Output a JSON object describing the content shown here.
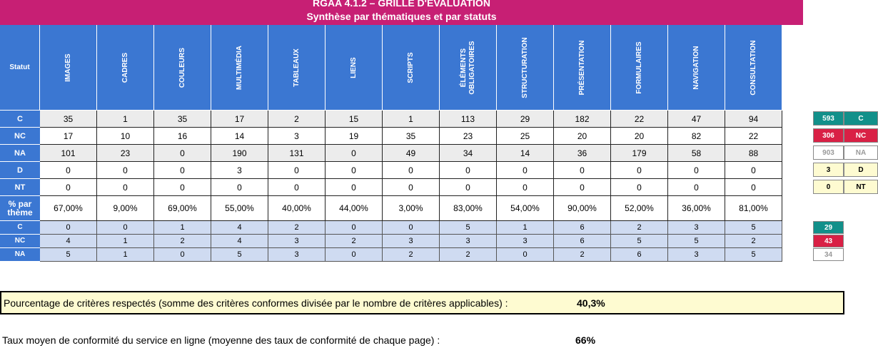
{
  "title": "RGAA 4.1.2 – GRILLE D'ÉVALUATION",
  "subtitle": "Synthèse par thématiques et par statuts",
  "statut_header": "Statut",
  "themes": [
    "IMAGES",
    "CADRES",
    "COULEURS",
    "MULTIMÉDIA",
    "TABLEAUX",
    "LIENS",
    "SCRIPTS",
    "ÉLÉMENTS\nOBLIGATOIRES",
    "STRUCTURATION",
    "PRÉSENTATION",
    "FORMULAIRES",
    "NAVIGATION",
    "CONSULTATION"
  ],
  "rows": [
    {
      "label": "C",
      "values": [
        "35",
        "1",
        "35",
        "17",
        "2",
        "15",
        "1",
        "113",
        "29",
        "182",
        "22",
        "47",
        "94"
      ]
    },
    {
      "label": "NC",
      "values": [
        "17",
        "10",
        "16",
        "14",
        "3",
        "19",
        "35",
        "23",
        "25",
        "20",
        "20",
        "82",
        "22"
      ]
    },
    {
      "label": "NA",
      "values": [
        "101",
        "23",
        "0",
        "190",
        "131",
        "0",
        "49",
        "34",
        "14",
        "36",
        "179",
        "58",
        "88"
      ]
    },
    {
      "label": "D",
      "values": [
        "0",
        "0",
        "0",
        "3",
        "0",
        "0",
        "0",
        "0",
        "0",
        "0",
        "0",
        "0",
        "0"
      ]
    },
    {
      "label": "NT",
      "values": [
        "0",
        "0",
        "0",
        "0",
        "0",
        "0",
        "0",
        "0",
        "0",
        "0",
        "0",
        "0",
        "0"
      ]
    },
    {
      "label": "% par thème",
      "values": [
        "67,00%",
        "9,00%",
        "69,00%",
        "55,00%",
        "40,00%",
        "44,00%",
        "3,00%",
        "83,00%",
        "54,00%",
        "90,00%",
        "52,00%",
        "36,00%",
        "81,00%"
      ]
    }
  ],
  "page_rows": [
    {
      "label": "C",
      "values": [
        "0",
        "0",
        "1",
        "4",
        "2",
        "0",
        "0",
        "5",
        "1",
        "6",
        "2",
        "3",
        "5"
      ]
    },
    {
      "label": "NC",
      "values": [
        "4",
        "1",
        "2",
        "4",
        "3",
        "2",
        "3",
        "3",
        "3",
        "6",
        "5",
        "5",
        "2"
      ]
    },
    {
      "label": "NA",
      "values": [
        "5",
        "1",
        "0",
        "5",
        "3",
        "0",
        "2",
        "2",
        "0",
        "2",
        "6",
        "3",
        "5"
      ]
    }
  ],
  "totals": [
    {
      "value": "593",
      "label": "C"
    },
    {
      "value": "306",
      "label": "NC"
    },
    {
      "value": "903",
      "label": "NA"
    },
    {
      "value": "3",
      "label": "D"
    },
    {
      "value": "0",
      "label": "NT"
    }
  ],
  "page_totals": [
    "29",
    "43",
    "34"
  ],
  "colors": {
    "banner": "#c71f74",
    "header": "#3b77d2",
    "c": "#12908a",
    "nc": "#d92045",
    "yellow": "#fefbd1"
  },
  "summary": {
    "respected_label": "Pourcentage de critères respectés (somme des critères conformes divisée par le nombre de critères applicables) :",
    "respected_value": "40,3%",
    "avg_label": "Taux moyen de conformité du service en ligne (moyenne des taux de conformité de chaque page) :",
    "avg_value": "66%"
  }
}
